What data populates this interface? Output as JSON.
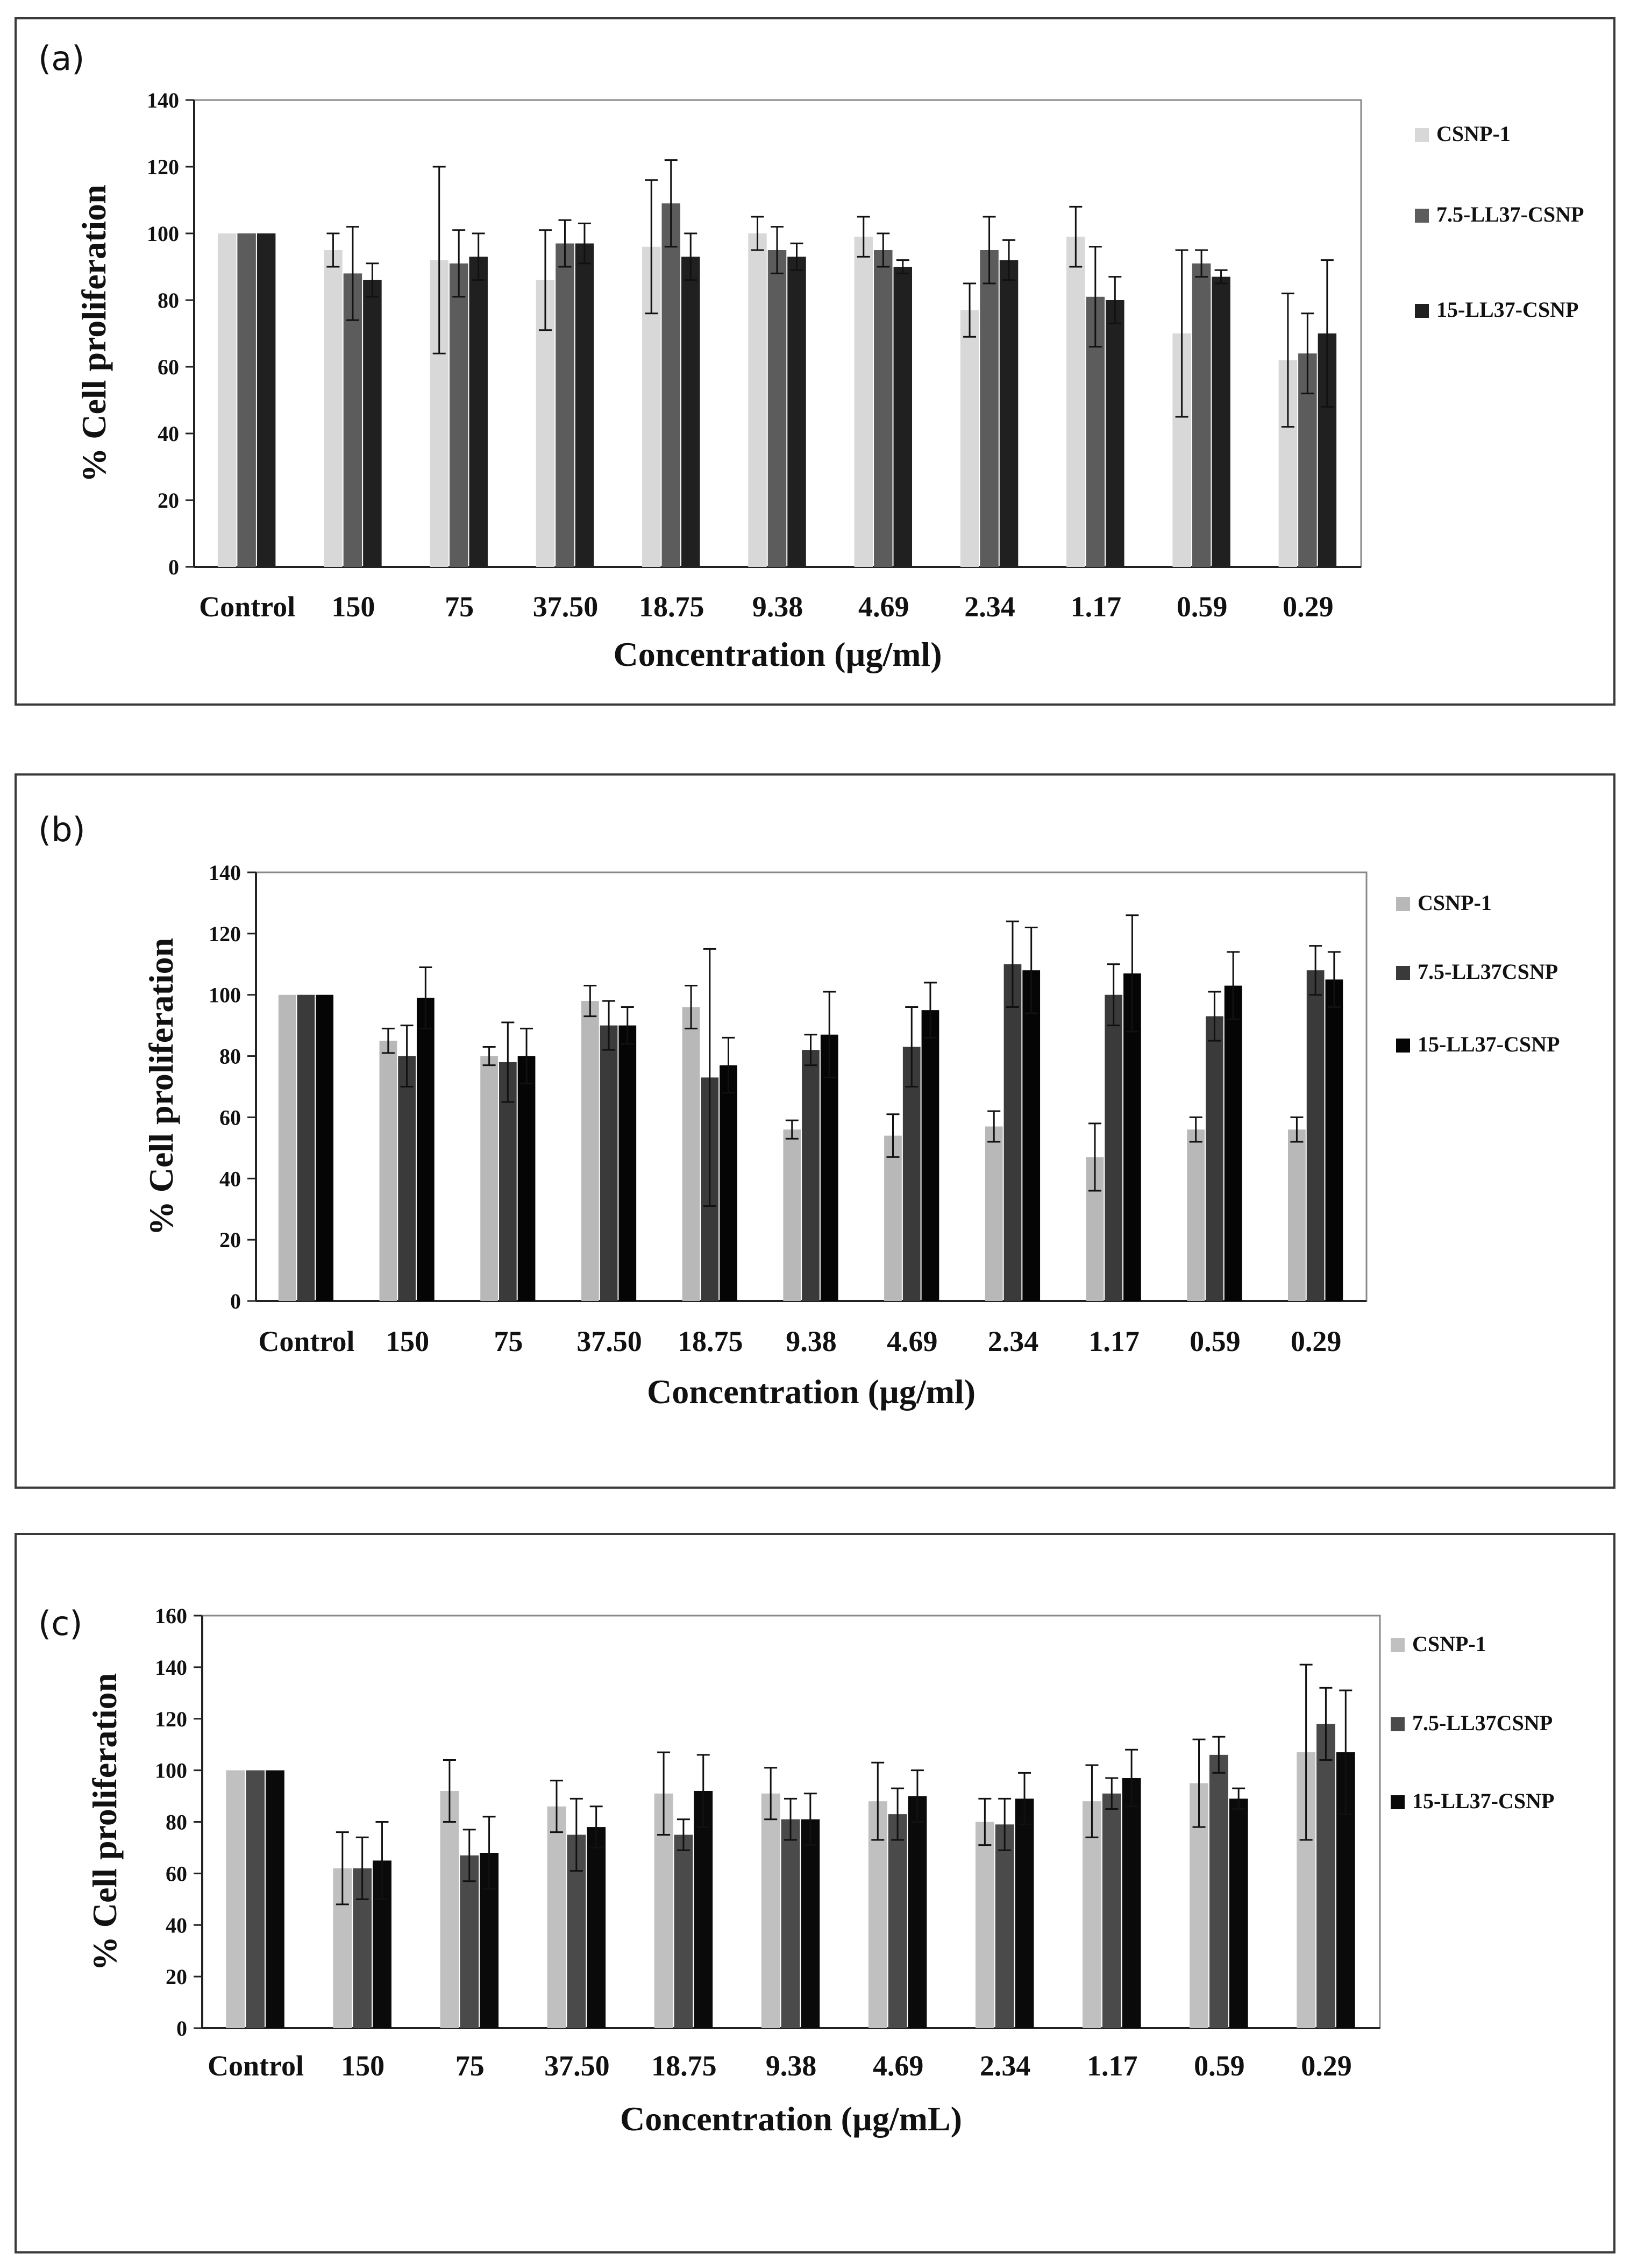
{
  "panels": [
    {
      "label": "(a)"
    },
    {
      "label": "(b)"
    },
    {
      "label": "(c)"
    }
  ],
  "chart_data": [
    {
      "type": "bar",
      "categories": [
        "Control",
        "150",
        "75",
        "37.50",
        "18.75",
        "9.38",
        "4.69",
        "2.34",
        "1.17",
        "0.59",
        "0.29"
      ],
      "ylabel": "% Cell proliferation",
      "xlabel": "Concentration (µg/ml)",
      "ylim": [
        0,
        140
      ],
      "yticks": [
        0,
        20,
        40,
        60,
        80,
        100,
        120,
        140
      ],
      "legend_position": "right",
      "series": [
        {
          "name": "CSNP-1",
          "color": "#d8d8d8",
          "values": [
            100,
            95,
            92,
            86,
            96,
            100,
            99,
            77,
            99,
            70,
            62
          ],
          "errors": [
            0,
            5,
            28,
            15,
            20,
            5,
            6,
            8,
            9,
            25,
            20
          ]
        },
        {
          "name": "7.5-LL37-CSNP",
          "color": "#5c5c5c",
          "values": [
            100,
            88,
            91,
            97,
            109,
            95,
            95,
            95,
            81,
            91,
            64
          ],
          "errors": [
            0,
            14,
            10,
            7,
            13,
            7,
            5,
            10,
            15,
            4,
            12
          ]
        },
        {
          "name": "15-LL37-CSNP",
          "color": "#202020",
          "values": [
            100,
            86,
            93,
            97,
            93,
            93,
            90,
            92,
            80,
            87,
            70
          ],
          "errors": [
            0,
            5,
            7,
            6,
            7,
            4,
            2,
            6,
            7,
            2,
            22
          ]
        }
      ]
    },
    {
      "type": "bar",
      "categories": [
        "Control",
        "150",
        "75",
        "37.50",
        "18.75",
        "9.38",
        "4.69",
        "2.34",
        "1.17",
        "0.59",
        "0.29"
      ],
      "ylabel": "% Cell proliferation",
      "xlabel": "Concentration (µg/ml)",
      "ylim": [
        0,
        140
      ],
      "yticks": [
        0,
        20,
        40,
        60,
        80,
        100,
        120,
        140
      ],
      "legend_position": "right",
      "series": [
        {
          "name": "CSNP-1",
          "color": "#b8b8b8",
          "values": [
            100,
            85,
            80,
            98,
            96,
            56,
            54,
            57,
            47,
            56,
            56
          ],
          "errors": [
            0,
            4,
            3,
            5,
            7,
            3,
            7,
            5,
            11,
            4,
            4
          ]
        },
        {
          "name": "7.5-LL37CSNP",
          "color": "#3a3a3a",
          "values": [
            100,
            80,
            78,
            90,
            73,
            82,
            83,
            110,
            100,
            93,
            108
          ],
          "errors": [
            0,
            10,
            13,
            8,
            42,
            5,
            13,
            14,
            10,
            8,
            8
          ]
        },
        {
          "name": "15-LL37-CSNP",
          "color": "#050505",
          "values": [
            100,
            99,
            80,
            90,
            77,
            87,
            95,
            108,
            107,
            103,
            105
          ],
          "errors": [
            0,
            10,
            9,
            6,
            9,
            14,
            9,
            14,
            19,
            11,
            9
          ]
        }
      ]
    },
    {
      "type": "bar",
      "categories": [
        "Control",
        "150",
        "75",
        "37.50",
        "18.75",
        "9.38",
        "4.69",
        "2.34",
        "1.17",
        "0.59",
        "0.29"
      ],
      "ylabel": "% Cell proliferation",
      "xlabel": "Concentration (µg/mL)",
      "ylim": [
        0,
        160
      ],
      "yticks": [
        0,
        20,
        40,
        60,
        80,
        100,
        120,
        140,
        160
      ],
      "legend_position": "right",
      "series": [
        {
          "name": "CSNP-1",
          "color": "#c0c0c0",
          "values": [
            100,
            62,
            92,
            86,
            91,
            91,
            88,
            80,
            88,
            95,
            107
          ],
          "errors": [
            0,
            14,
            12,
            10,
            16,
            10,
            15,
            9,
            14,
            17,
            34
          ]
        },
        {
          "name": "7.5-LL37CSNP",
          "color": "#4a4a4a",
          "values": [
            100,
            62,
            67,
            75,
            75,
            81,
            83,
            79,
            91,
            106,
            118
          ],
          "errors": [
            0,
            12,
            10,
            14,
            6,
            8,
            10,
            10,
            6,
            7,
            14
          ]
        },
        {
          "name": "15-LL37-CSNP",
          "color": "#0a0a0a",
          "values": [
            100,
            65,
            68,
            78,
            92,
            81,
            90,
            89,
            97,
            89,
            107
          ],
          "errors": [
            0,
            15,
            14,
            8,
            14,
            10,
            10,
            10,
            11,
            4,
            24
          ]
        }
      ]
    }
  ]
}
